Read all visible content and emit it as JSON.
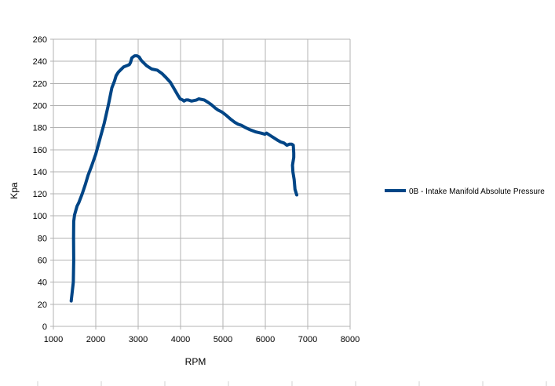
{
  "chart_data": {
    "type": "line",
    "xlabel": "RPM",
    "ylabel": "Kpa",
    "xlim": [
      1000,
      8000
    ],
    "ylim": [
      0,
      260
    ],
    "x_ticks": [
      1000,
      2000,
      3000,
      4000,
      5000,
      6000,
      7000,
      8000
    ],
    "y_ticks": [
      0,
      20,
      40,
      60,
      80,
      100,
      120,
      140,
      160,
      180,
      200,
      220,
      240,
      260
    ],
    "grid": true,
    "legend_position": "right",
    "series": [
      {
        "name": "0B - Intake Manifold Absolute Pressure",
        "color": "#004586",
        "x": [
          1420,
          1470,
          1480,
          1475,
          1480,
          1500,
          1560,
          1600,
          1680,
          1750,
          1820,
          1900,
          2000,
          2100,
          2200,
          2300,
          2380,
          2440,
          2480,
          2530,
          2580,
          2660,
          2730,
          2790,
          2820,
          2850,
          2880,
          2920,
          2970,
          3020,
          3070,
          3120,
          3200,
          3320,
          3450,
          3560,
          3640,
          3760,
          3850,
          3940,
          3990,
          4050,
          4080,
          4130,
          4180,
          4260,
          4380,
          4430,
          4560,
          4640,
          4720,
          4810,
          4880,
          4980,
          5080,
          5170,
          5270,
          5360,
          5440,
          5530,
          5640,
          5780,
          5900,
          5990,
          6030,
          6110,
          6190,
          6270,
          6360,
          6440,
          6510,
          6570,
          6620,
          6660,
          6670,
          6670,
          6640,
          6650,
          6680,
          6700,
          6740
        ],
        "y": [
          23,
          40,
          60,
          80,
          95,
          101,
          109,
          112,
          120,
          128,
          137,
          145,
          156,
          170,
          184,
          201,
          216,
          222,
          227,
          230,
          232,
          235,
          236,
          237,
          239,
          243,
          244,
          245,
          245,
          244,
          241,
          239,
          236,
          233,
          232,
          229,
          226,
          221,
          215,
          209,
          206,
          205,
          204,
          205,
          205,
          204,
          205,
          206,
          205,
          203,
          201,
          198,
          196,
          194,
          191,
          188,
          185,
          183,
          182,
          180,
          178,
          176,
          175,
          174,
          175,
          173,
          171,
          169,
          167,
          166,
          164,
          165,
          165,
          164,
          157,
          153,
          146,
          140,
          133,
          124,
          119
        ]
      }
    ]
  }
}
